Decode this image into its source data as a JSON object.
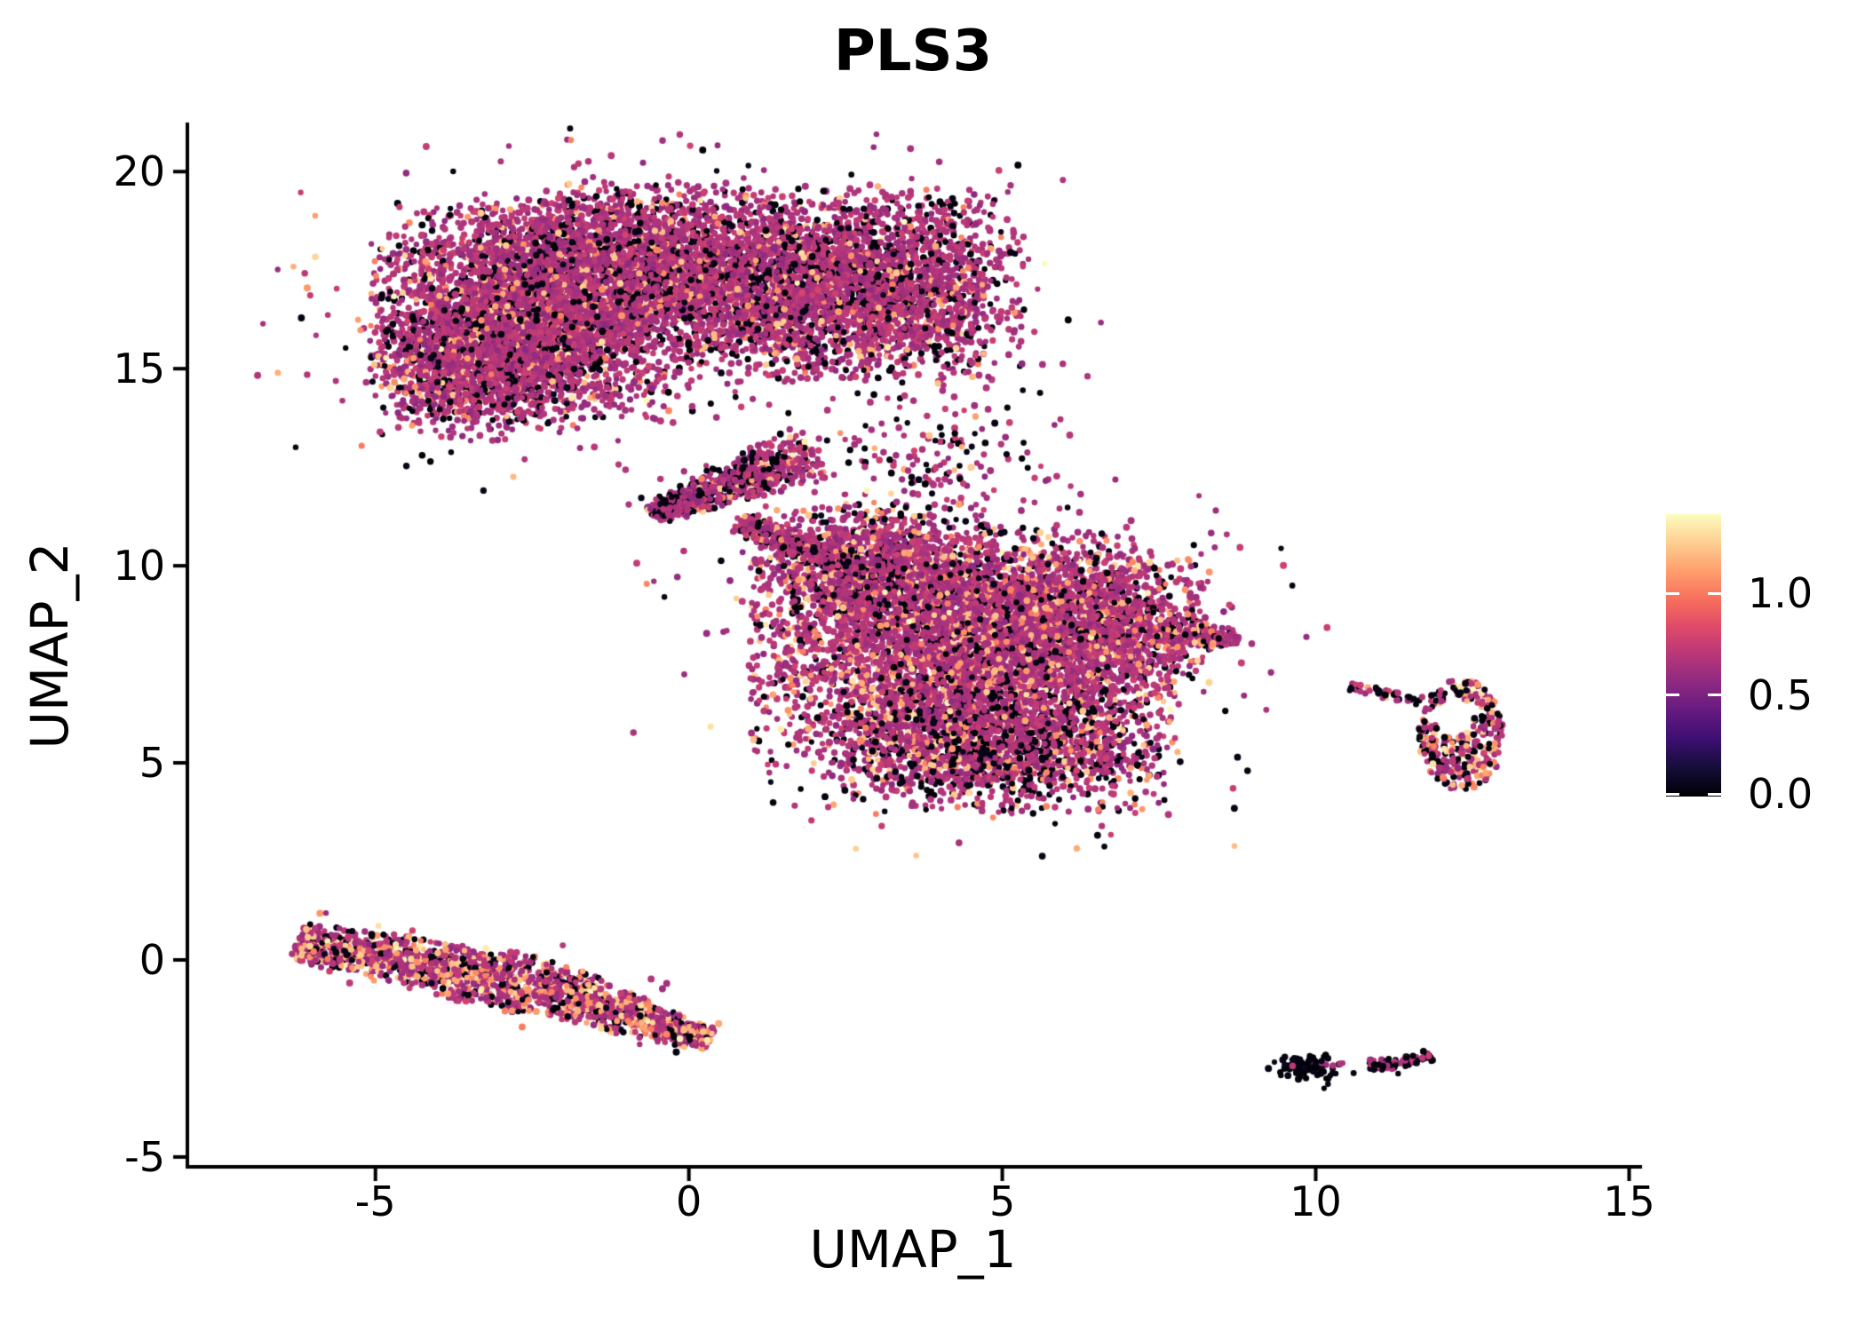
{
  "title": "PLS3",
  "axes": {
    "x_label": "UMAP_1",
    "y_label": "UMAP_2",
    "x_ticks": [
      -5,
      0,
      5,
      10,
      15
    ],
    "y_ticks": [
      20,
      15,
      10,
      5,
      0,
      -5
    ]
  },
  "colorbar": {
    "colormap": "magma",
    "vmin": 0.0,
    "vmax": 1.39,
    "ticks": [
      {
        "value": 1.0,
        "label": "1.0"
      },
      {
        "value": 0.5,
        "label": "0.5"
      },
      {
        "value": 0.0,
        "label": "0.0"
      }
    ]
  },
  "chart_data": {
    "type": "scatter",
    "title": "PLS3",
    "xlabel": "UMAP_1",
    "ylabel": "UMAP_2",
    "xlim": [
      -8.0,
      15.15
    ],
    "ylim": [
      -5.25,
      21.2
    ],
    "x_ticks": [
      -5,
      0,
      5,
      10,
      15
    ],
    "y_ticks": [
      20,
      15,
      10,
      5,
      0,
      -5
    ],
    "grid": false,
    "legend_position": "right-colorbar",
    "colormap": "magma",
    "color_domain": [
      0.0,
      1.39
    ],
    "colorbar_ticks": [
      0.0,
      0.5,
      1.0
    ],
    "point_radius_px": 3.5,
    "colormap_stops": [
      [
        0.0,
        "#000004"
      ],
      [
        0.1,
        "#140e36"
      ],
      [
        0.2,
        "#3b0f70"
      ],
      [
        0.3,
        "#631a80"
      ],
      [
        0.4,
        "#8c2981"
      ],
      [
        0.5,
        "#b73779"
      ],
      [
        0.6,
        "#de4968"
      ],
      [
        0.7,
        "#f7705c"
      ],
      [
        0.8,
        "#fe9f6d"
      ],
      [
        0.9,
        "#fecf92"
      ],
      [
        1.0,
        "#fcfdbf"
      ]
    ],
    "expression_value_bands": {
      "black": [
        0.0,
        0.06
      ],
      "mid": [
        0.54,
        0.8
      ],
      "high": [
        1.0,
        1.27
      ],
      "cream": [
        1.29,
        1.39
      ]
    },
    "band_mixes": {
      "top": {
        "black": 0.17,
        "mid": 0.745,
        "high": 0.08,
        "cream": 0.005
      },
      "bridge": {
        "black": 0.25,
        "mid": 0.65,
        "high": 0.09,
        "cream": 0.01
      },
      "sparse": {
        "black": 0.35,
        "mid": 0.55,
        "high": 0.1,
        "cream": 0.0
      },
      "mid": {
        "black": 0.14,
        "mid": 0.705,
        "high": 0.145,
        "cream": 0.01
      },
      "midBottom": {
        "black": 0.3,
        "mid": 0.53,
        "high": 0.16,
        "cream": 0.01
      },
      "tail": {
        "black": 0.25,
        "mid": 0.6,
        "high": 0.14,
        "cream": 0.01
      },
      "band": {
        "black": 0.16,
        "mid": 0.51,
        "high": 0.31,
        "cream": 0.02
      },
      "ring": {
        "black": 0.32,
        "mid": 0.4,
        "high": 0.24,
        "cream": 0.04
      },
      "trail": {
        "black": 0.55,
        "mid": 0.4,
        "high": 0.05,
        "cream": 0.0
      },
      "dark": {
        "black": 0.86,
        "mid": 0.14,
        "high": 0.0,
        "cream": 0.0
      },
      "dot": {
        "black": 0.25,
        "mid": 0.75,
        "high": 0.0,
        "cream": 0.0
      },
      "darkMix": {
        "black": 0.6,
        "mid": 0.4,
        "high": 0.0,
        "cream": 0.0
      }
    },
    "clusters": [
      {
        "name": "top-left-lobe",
        "shape": "gauss",
        "cx": -2.5,
        "cy": 16.4,
        "sx": 1.2,
        "sy": 1.3,
        "n": 3800,
        "mix": "top"
      },
      {
        "name": "top-upper-mid",
        "shape": "gauss",
        "cx": -0.7,
        "cy": 17.6,
        "sx": 1.25,
        "sy": 1.0,
        "n": 2400,
        "mix": "top"
      },
      {
        "name": "top-right-lobe",
        "shape": "gauss",
        "cx": 3.1,
        "cy": 17.1,
        "sx": 1.05,
        "sy": 1.15,
        "n": 2300,
        "mix": "top"
      },
      {
        "name": "top-neck",
        "shape": "gauss",
        "cx": 1.2,
        "cy": 16.9,
        "sx": 0.85,
        "sy": 1.05,
        "n": 1100,
        "mix": "top"
      },
      {
        "name": "top-left-bulge",
        "shape": "gauss",
        "cx": -3.4,
        "cy": 15.0,
        "sx": 0.8,
        "sy": 0.85,
        "n": 850,
        "mix": "top"
      },
      {
        "name": "wedge-blob",
        "shape": "band",
        "x1": -0.6,
        "y1": 11.3,
        "x2": 2.0,
        "y2": 12.9,
        "w1": 0.28,
        "w2": 0.75,
        "n": 650,
        "mix": "bridge"
      },
      {
        "name": "bridge-stream",
        "shape": "band",
        "x1": 0.8,
        "y1": 11.1,
        "x2": 3.0,
        "y2": 9.8,
        "w1": 0.3,
        "w2": 0.45,
        "n": 420,
        "mix": "bridge"
      },
      {
        "name": "gap-sparse",
        "shape": "gauss",
        "cx": 3.8,
        "cy": 12.6,
        "sx": 1.0,
        "sy": 1.0,
        "n": 170,
        "mix": "sparse"
      },
      {
        "name": "middle-main",
        "shape": "gauss",
        "cx": 4.4,
        "cy": 7.8,
        "sx": 1.6,
        "sy": 1.5,
        "n": 4800,
        "mix": "mid"
      },
      {
        "name": "middle-top-lobe",
        "shape": "gauss",
        "cx": 2.9,
        "cy": 9.9,
        "sx": 0.9,
        "sy": 0.8,
        "n": 1100,
        "mix": "mid"
      },
      {
        "name": "middle-right-bulge",
        "shape": "gauss",
        "cx": 6.3,
        "cy": 8.5,
        "sx": 0.95,
        "sy": 0.95,
        "n": 1400,
        "mix": "mid"
      },
      {
        "name": "middle-bottom",
        "shape": "gauss",
        "cx": 4.9,
        "cy": 5.3,
        "sx": 1.25,
        "sy": 0.75,
        "n": 1400,
        "mix": "midBottom"
      },
      {
        "name": "middle-tail",
        "shape": "band",
        "x1": 7.5,
        "y1": 8.4,
        "x2": 8.75,
        "y2": 8.1,
        "w1": 0.5,
        "w2": 0.16,
        "n": 210,
        "mix": "tail"
      },
      {
        "name": "lower-band-left",
        "shape": "band",
        "x1": -6.25,
        "y1": 0.45,
        "x2": -2.6,
        "y2": -0.6,
        "w1": 0.5,
        "w2": 0.8,
        "n": 1050,
        "mix": "band"
      },
      {
        "name": "lower-band-right",
        "shape": "band",
        "x1": -2.6,
        "y1": -0.6,
        "x2": 0.35,
        "y2": -2.05,
        "w1": 0.8,
        "w2": 0.3,
        "n": 850,
        "mix": "band"
      },
      {
        "name": "right-ring",
        "shape": "ring",
        "cx": 12.32,
        "cy": 5.7,
        "rx": 0.68,
        "ry": 1.42,
        "hx": 12.2,
        "hy": 6.15,
        "hrx": 0.3,
        "hry": 0.5,
        "n": 330,
        "mix": "ring"
      },
      {
        "name": "ring-trail",
        "shape": "band",
        "x1": 10.55,
        "y1": 6.9,
        "x2": 11.7,
        "y2": 6.6,
        "w1": 0.12,
        "w2": 0.14,
        "n": 40,
        "mix": "trail"
      },
      {
        "name": "bottom-right-blob",
        "shape": "gauss",
        "cx": 9.85,
        "cy": -2.72,
        "sx": 0.25,
        "sy": 0.15,
        "n": 110,
        "mix": "dark"
      },
      {
        "name": "bottom-right-dot",
        "shape": "gauss",
        "cx": 10.42,
        "cy": -2.62,
        "sx": 0.04,
        "sy": 0.03,
        "n": 2,
        "mix": "dot"
      },
      {
        "name": "bottom-right-strip",
        "shape": "band",
        "x1": 10.85,
        "y1": -2.72,
        "x2": 11.85,
        "y2": -2.45,
        "w1": 0.18,
        "w2": 0.12,
        "n": 85,
        "mix": "darkMix"
      }
    ],
    "outliers": [
      {
        "x": 6.54,
        "y": 3.78,
        "band": "mid"
      }
    ]
  }
}
